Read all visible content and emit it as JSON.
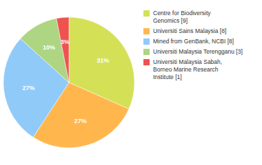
{
  "chart_data": {
    "type": "pie",
    "categories": [
      "Centre for Biodiversity\nGenomics [9]",
      "Universiti Sains Malaysia [8]",
      "Mined from GenBank, NCBI [8]",
      "Universiti Malaysia Terengganu [3]",
      "Universiti Malaysia Sabah,\nBorneo Marine Research\nInstitute [1]"
    ],
    "values": [
      31,
      27,
      27,
      10,
      3
    ],
    "value_labels": [
      "31%",
      "27%",
      "27%",
      "10%",
      "3%"
    ],
    "colors": [
      "#d4e157",
      "#ffb74d",
      "#90caf9",
      "#aed581",
      "#ef5350"
    ],
    "data_labels": true,
    "legend": "right"
  }
}
